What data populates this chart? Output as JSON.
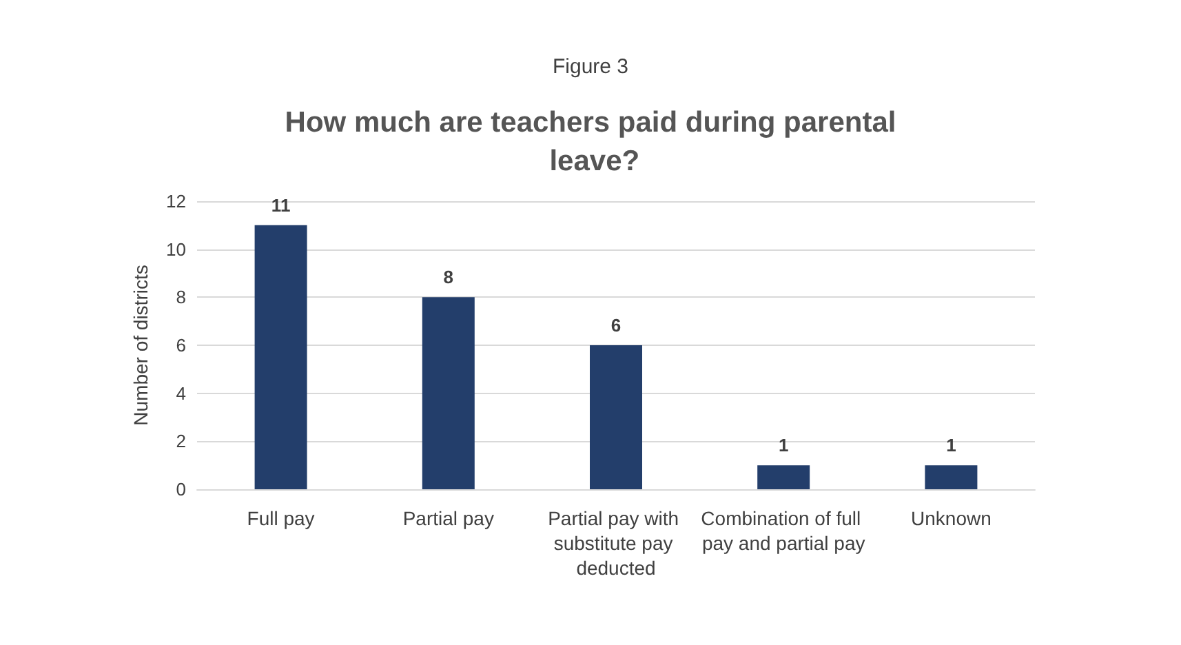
{
  "chart_data": {
    "type": "bar",
    "subtitle": "Figure 3",
    "title": "How much are teachers paid during parental leave?",
    "ylabel": "Number of districts",
    "categories": [
      "Full pay",
      "Partial pay",
      "Partial pay with substitute pay deducted",
      "Combination of full pay and partial pay",
      "Unknown"
    ],
    "values": [
      11,
      8,
      6,
      1,
      1
    ],
    "color": "#233e6b",
    "ylim": [
      0,
      12
    ],
    "yticks": [
      0,
      2,
      4,
      6,
      8,
      10,
      12
    ],
    "grid": "y",
    "data_labels": true
  }
}
